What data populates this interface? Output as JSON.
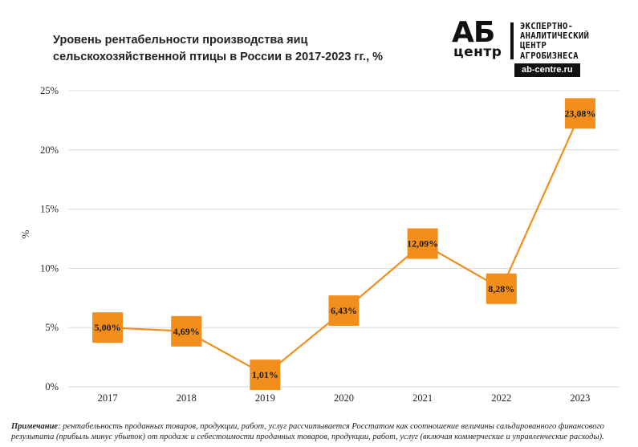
{
  "title_line1": "Уровень рентабельности производства яиц",
  "title_line2": "сельскохозяйственной птицы в России в 2017-2023 гг., %",
  "logo": {
    "mark": "АБ",
    "sub": "центр",
    "lines": [
      "ЭКСПЕРТНО-",
      "АНАЛИТИЧЕСКИЙ",
      "ЦЕНТР",
      "АГРОБИЗНЕСА"
    ],
    "url": "ab-centre.ru"
  },
  "note": {
    "label": "Примечание",
    "text": ": рентабельность проданных товаров, продукции, работ, услуг рассчитывается Росстатом как соотношение величины сальдированного финансового результата (прибыль минус убыток) от продаж и себестоимости проданных товаров, продукции, работ, услуг (включая коммерческие и управленческие расходы)."
  },
  "colors": {
    "series": "#f28e1c",
    "marker": "#f28e1c",
    "grid": "#d9d9d9"
  },
  "chart_data": {
    "type": "line",
    "categories": [
      "2017",
      "2018",
      "2019",
      "2020",
      "2021",
      "2022",
      "2023"
    ],
    "series": [
      {
        "values": [
          5.0,
          4.69,
          1.01,
          6.43,
          12.09,
          8.28,
          23.08
        ]
      }
    ],
    "data_labels": [
      "5,00%",
      "4,69%",
      "1,01%",
      "6,43%",
      "12,09%",
      "8,28%",
      "23,08%"
    ],
    "ylim": [
      0,
      25
    ],
    "yticks": [
      0,
      5,
      10,
      15,
      20,
      25
    ],
    "ytick_labels": [
      "0%",
      "5%",
      "10%",
      "15%",
      "20%",
      "25%"
    ],
    "ylabel": "%",
    "xlabel": "",
    "grid": true,
    "legend": false
  }
}
